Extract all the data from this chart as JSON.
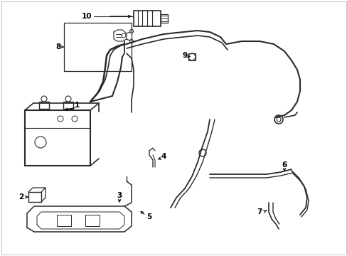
{
  "background_color": "#ffffff",
  "line_color": "#2a2a2a",
  "text_color": "#000000",
  "fig_width": 4.89,
  "fig_height": 3.6,
  "dpi": 100,
  "border_color": "#cccccc"
}
